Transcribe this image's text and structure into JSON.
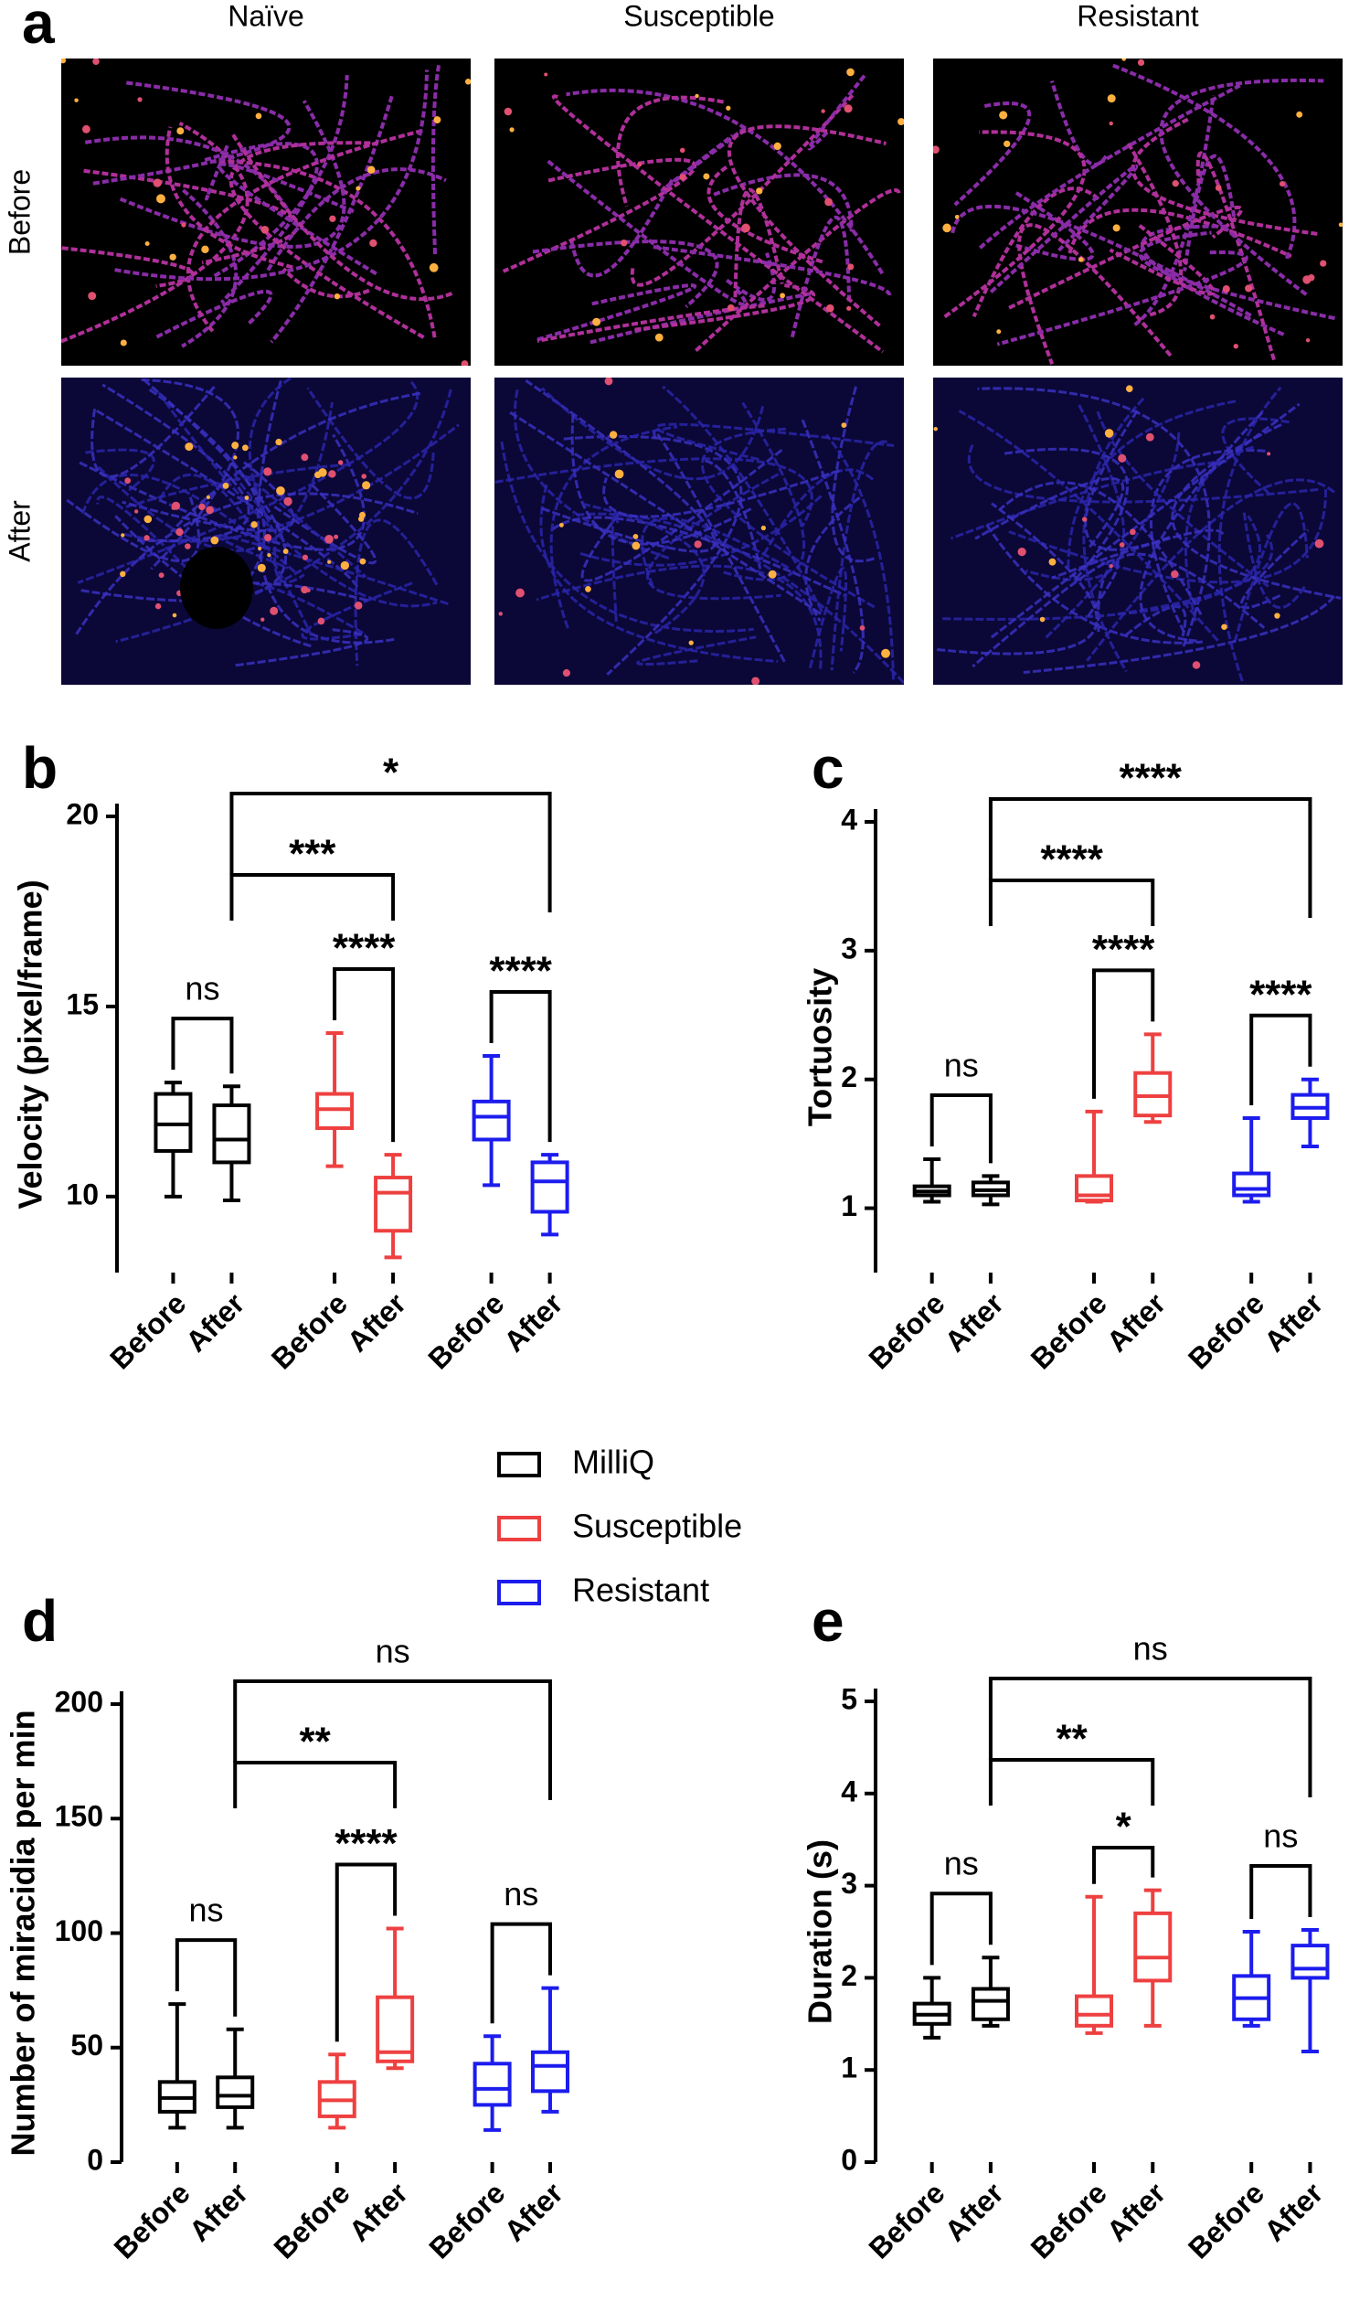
{
  "panel_a": {
    "label": "a",
    "columns": [
      "Naïve",
      "Susceptible",
      "Resistant"
    ],
    "rows": [
      "Before",
      "After"
    ]
  },
  "legend": {
    "entries": [
      {
        "name": "MilliQ",
        "color": "#000000"
      },
      {
        "name": "Susceptible",
        "color": "#ee4040"
      },
      {
        "name": "Resistant",
        "color": "#1c1cee"
      }
    ]
  },
  "chart_data": [
    {
      "type": "box",
      "panel": "b",
      "ylabel": "Velocity (pixel/frame)",
      "ylim": [
        8,
        20
      ],
      "yticks": [
        10,
        15,
        20
      ],
      "categories": [
        "Before",
        "After",
        "Before",
        "After",
        "Before",
        "After"
      ],
      "boxes": [
        {
          "min": 10,
          "q1": 11.2,
          "median": 11.9,
          "q3": 12.7,
          "max": 13
        },
        {
          "min": 9.9,
          "q1": 10.9,
          "median": 11.5,
          "q3": 12.4,
          "max": 12.9
        },
        {
          "min": 10.8,
          "q1": 11.8,
          "median": 12.3,
          "q3": 12.7,
          "max": 14.3
        },
        {
          "min": 8.4,
          "q1": 9.1,
          "median": 10.1,
          "q3": 10.5,
          "max": 11.1
        },
        {
          "min": 10.3,
          "q1": 11.5,
          "median": 12.1,
          "q3": 12.5,
          "max": 13.7
        },
        {
          "min": 9,
          "q1": 9.6,
          "median": 10.4,
          "q3": 10.9,
          "max": 11.1
        }
      ],
      "comparisons": [
        {
          "from": 0,
          "to": 1,
          "label": "ns"
        },
        {
          "from": 2,
          "to": 3,
          "label": "****"
        },
        {
          "from": 4,
          "to": 5,
          "label": "****"
        },
        {
          "from": 1,
          "to": 3,
          "label": "***"
        },
        {
          "from": 1,
          "to": 5,
          "label": "*"
        }
      ]
    },
    {
      "type": "box",
      "panel": "c",
      "ylabel": "Tortuosity",
      "ylim": [
        0.5,
        4
      ],
      "yticks": [
        1,
        2,
        3,
        4
      ],
      "categories": [
        "Before",
        "After",
        "Before",
        "After",
        "Before",
        "After"
      ],
      "boxes": [
        {
          "min": 1.05,
          "q1": 1.1,
          "median": 1.13,
          "q3": 1.17,
          "max": 1.38
        },
        {
          "min": 1.03,
          "q1": 1.1,
          "median": 1.14,
          "q3": 1.2,
          "max": 1.25
        },
        {
          "min": 1.05,
          "q1": 1.06,
          "median": 1.1,
          "q3": 1.25,
          "max": 1.75
        },
        {
          "min": 1.67,
          "q1": 1.72,
          "median": 1.87,
          "q3": 2.05,
          "max": 2.35
        },
        {
          "min": 1.05,
          "q1": 1.1,
          "median": 1.15,
          "q3": 1.27,
          "max": 1.7
        },
        {
          "min": 1.48,
          "q1": 1.7,
          "median": 1.78,
          "q3": 1.88,
          "max": 2
        }
      ],
      "comparisons": [
        {
          "from": 0,
          "to": 1,
          "label": "ns"
        },
        {
          "from": 2,
          "to": 3,
          "label": "****"
        },
        {
          "from": 4,
          "to": 5,
          "label": "****"
        },
        {
          "from": 1,
          "to": 3,
          "label": "****"
        },
        {
          "from": 1,
          "to": 5,
          "label": "****"
        }
      ]
    },
    {
      "type": "box",
      "panel": "d",
      "ylabel": "Number of miracidia per min",
      "ylim": [
        0,
        200
      ],
      "yticks": [
        0,
        50,
        100,
        150,
        200
      ],
      "categories": [
        "Before",
        "After",
        "Before",
        "After",
        "Before",
        "After"
      ],
      "boxes": [
        {
          "min": 15,
          "q1": 22,
          "median": 28,
          "q3": 35,
          "max": 69
        },
        {
          "min": 15,
          "q1": 24,
          "median": 29,
          "q3": 37,
          "max": 58
        },
        {
          "min": 15,
          "q1": 20,
          "median": 27,
          "q3": 35,
          "max": 47
        },
        {
          "min": 41,
          "q1": 44,
          "median": 48,
          "q3": 72,
          "max": 102
        },
        {
          "min": 14,
          "q1": 25,
          "median": 32,
          "q3": 43,
          "max": 55
        },
        {
          "min": 22,
          "q1": 31,
          "median": 42,
          "q3": 48,
          "max": 76
        }
      ],
      "comparisons": [
        {
          "from": 0,
          "to": 1,
          "label": "ns"
        },
        {
          "from": 2,
          "to": 3,
          "label": "****"
        },
        {
          "from": 4,
          "to": 5,
          "label": "ns"
        },
        {
          "from": 1,
          "to": 3,
          "label": "**"
        },
        {
          "from": 1,
          "to": 5,
          "label": "ns"
        }
      ]
    },
    {
      "type": "box",
      "panel": "e",
      "ylabel": "Duration (s)",
      "ylim": [
        0,
        5
      ],
      "yticks": [
        0,
        1,
        2,
        3,
        4,
        5
      ],
      "categories": [
        "Before",
        "After",
        "Before",
        "After",
        "Before",
        "After"
      ],
      "boxes": [
        {
          "min": 1.35,
          "q1": 1.5,
          "median": 1.6,
          "q3": 1.72,
          "max": 2
        },
        {
          "min": 1.48,
          "q1": 1.55,
          "median": 1.75,
          "q3": 1.88,
          "max": 2.22
        },
        {
          "min": 1.4,
          "q1": 1.48,
          "median": 1.6,
          "q3": 1.8,
          "max": 2.88
        },
        {
          "min": 1.48,
          "q1": 1.97,
          "median": 2.22,
          "q3": 2.7,
          "max": 2.95
        },
        {
          "min": 1.48,
          "q1": 1.55,
          "median": 1.78,
          "q3": 2.02,
          "max": 2.5
        },
        {
          "min": 1.2,
          "q1": 2,
          "median": 2.1,
          "q3": 2.35,
          "max": 2.52
        }
      ],
      "comparisons": [
        {
          "from": 0,
          "to": 1,
          "label": "ns"
        },
        {
          "from": 2,
          "to": 3,
          "label": "*"
        },
        {
          "from": 4,
          "to": 5,
          "label": "ns"
        },
        {
          "from": 1,
          "to": 3,
          "label": "**"
        },
        {
          "from": 1,
          "to": 5,
          "label": "ns"
        }
      ]
    }
  ]
}
